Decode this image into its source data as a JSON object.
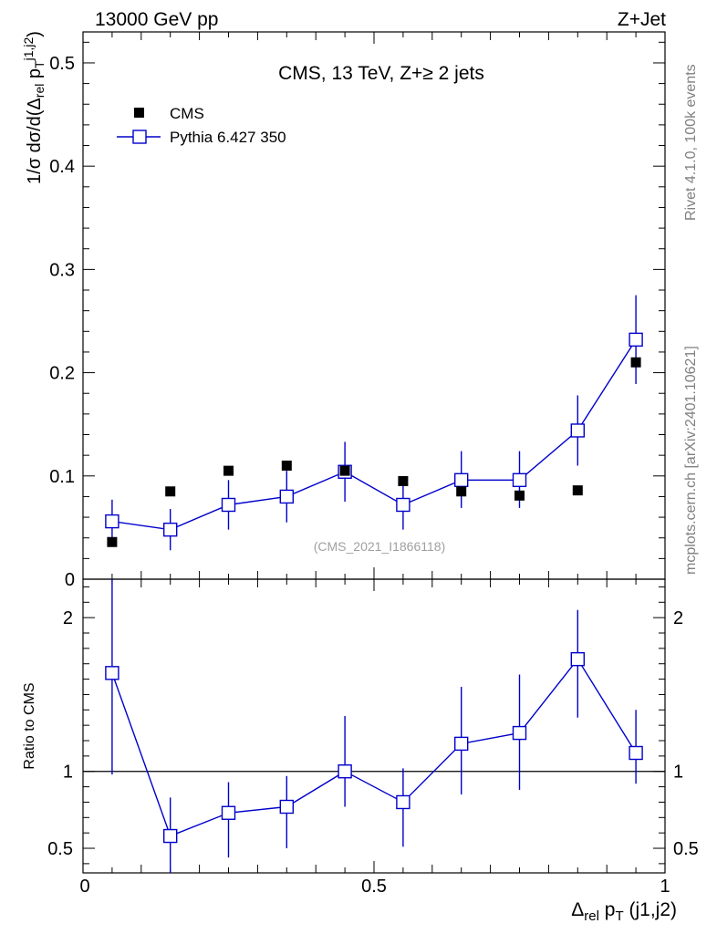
{
  "header": {
    "left": "13000 GeV pp",
    "right": "Z+Jet"
  },
  "side_labels": {
    "rivet": "Rivet 4.1.0,  100k events",
    "mcplots": "mcplots.cern.ch [arXiv:2401.10621]"
  },
  "colors": {
    "data": "#000000",
    "mc": "#0000cc",
    "side_text": "#808080"
  },
  "chart_data": [
    {
      "type": "scatter",
      "title": "CMS, 13 TeV, Z+≥ 2 jets",
      "watermark": "(CMS_2021_I1866118)",
      "ylabel": "1/σ dσ/d(Δrel pT j1,j2)",
      "ylim": [
        0,
        0.53
      ],
      "yticks": [
        0,
        0.1,
        0.2,
        0.3,
        0.4,
        0.5
      ],
      "ytick_labels": [
        "0",
        "0.1",
        "0.2",
        "0.3",
        "0.4",
        "0.5"
      ],
      "xlim": [
        0,
        1
      ],
      "legend": {
        "position": "top-left",
        "entries": [
          "CMS",
          "Pythia 6.427 350"
        ]
      },
      "series": [
        {
          "name": "CMS",
          "style": "filled-square",
          "x": [
            0.05,
            0.15,
            0.25,
            0.35,
            0.45,
            0.55,
            0.65,
            0.75,
            0.85,
            0.95
          ],
          "y": [
            0.036,
            0.085,
            0.105,
            0.11,
            0.105,
            0.095,
            0.085,
            0.081,
            0.086,
            0.21
          ]
        },
        {
          "name": "Pythia 6.427 350",
          "style": "open-square-line",
          "x": [
            0.05,
            0.15,
            0.25,
            0.35,
            0.45,
            0.55,
            0.65,
            0.75,
            0.85,
            0.95
          ],
          "y": [
            0.056,
            0.048,
            0.072,
            0.08,
            0.104,
            0.072,
            0.096,
            0.096,
            0.144,
            0.232
          ],
          "err_lo": [
            0.036,
            0.028,
            0.048,
            0.055,
            0.075,
            0.048,
            0.069,
            0.069,
            0.11,
            0.189
          ],
          "err_hi": [
            0.077,
            0.068,
            0.096,
            0.105,
            0.133,
            0.096,
            0.124,
            0.124,
            0.178,
            0.275
          ]
        }
      ]
    },
    {
      "type": "scatter",
      "ylabel": "Ratio to CMS",
      "xlabel": "Δrel pT (j1,j2)",
      "ylim": [
        0.34,
        2.25
      ],
      "yticks": [
        0.5,
        1,
        2
      ],
      "ytick_labels": [
        "0.5",
        "1",
        "2"
      ],
      "xlim": [
        0,
        1
      ],
      "xticks": [
        0,
        0.5,
        1
      ],
      "xtick_labels": [
        "0",
        "0.5",
        "1"
      ],
      "reference_line": 1,
      "series": [
        {
          "name": "Pythia 6.427 350 / CMS",
          "x": [
            0.05,
            0.15,
            0.25,
            0.35,
            0.45,
            0.55,
            0.65,
            0.75,
            0.85,
            0.95
          ],
          "y": [
            1.64,
            0.58,
            0.73,
            0.77,
            1.0,
            0.8,
            1.18,
            1.25,
            1.73,
            1.12
          ],
          "err_lo": [
            0.98,
            0.3,
            0.44,
            0.5,
            0.77,
            0.51,
            0.85,
            0.88,
            1.35,
            0.92
          ],
          "err_hi": [
            2.28,
            0.83,
            0.93,
            0.97,
            1.36,
            1.02,
            1.55,
            1.63,
            2.05,
            1.4
          ]
        }
      ]
    }
  ]
}
